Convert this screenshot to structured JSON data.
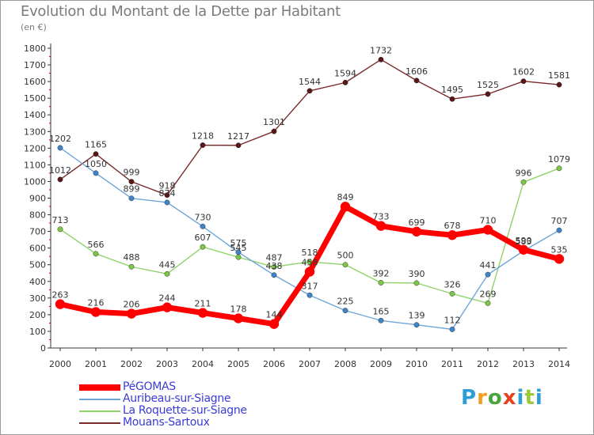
{
  "title": "Evolution du Montant de la Dette par Habitant",
  "unit": "(en €)",
  "logo": {
    "text": "Proxiti",
    "colors": [
      "#2e9fd6",
      "#f0a020",
      "#4aa33f",
      "#e8411f",
      "#2e9fd6",
      "#9bc93a",
      "#2e9fd6"
    ]
  },
  "chart_data": {
    "type": "line",
    "x": [
      2000,
      2001,
      2002,
      2003,
      2004,
      2005,
      2006,
      2007,
      2008,
      2009,
      2010,
      2011,
      2012,
      2013,
      2014
    ],
    "ylim": [
      0,
      1800
    ],
    "yticks": [
      0,
      100,
      200,
      300,
      400,
      500,
      600,
      700,
      800,
      900,
      1000,
      1100,
      1200,
      1300,
      1400,
      1500,
      1600,
      1700,
      1800
    ],
    "grid": false,
    "legend_position": "bottom-left",
    "series": [
      {
        "name": "Mouans-Sartoux",
        "color": "#7a2a2a",
        "marker": "#5a1616",
        "width": 1.4,
        "values": [
          1012,
          1165,
          999,
          918,
          1218,
          1217,
          1301,
          1544,
          1594,
          1732,
          1606,
          1495,
          1525,
          1602,
          1581
        ]
      },
      {
        "name": "La Roquette-sur-Siagne",
        "color": "#8fd36a",
        "marker": "#7cc745",
        "width": 1.4,
        "values": [
          713,
          566,
          488,
          445,
          607,
          545,
          487,
          518,
          500,
          392,
          390,
          326,
          269,
          996,
          1079
        ]
      },
      {
        "name": "Auribeau-sur-Siagne",
        "color": "#6ea6d8",
        "marker": "#3f84c8",
        "width": 1.4,
        "values": [
          1202,
          1050,
          899,
          874,
          730,
          575,
          438,
          317,
          225,
          165,
          139,
          112,
          441,
          583,
          707
        ]
      },
      {
        "name": "PéGOMAS",
        "color": "#ff0000",
        "marker": "#ff0000",
        "width": 7,
        "values": [
          263,
          216,
          206,
          244,
          211,
          178,
          144,
          458,
          849,
          733,
          699,
          678,
          710,
          590,
          535
        ]
      }
    ],
    "legend": [
      "PéGOMAS",
      "Auribeau-sur-Siagne",
      "La Roquette-sur-Siagne",
      "Mouans-Sartoux"
    ]
  }
}
